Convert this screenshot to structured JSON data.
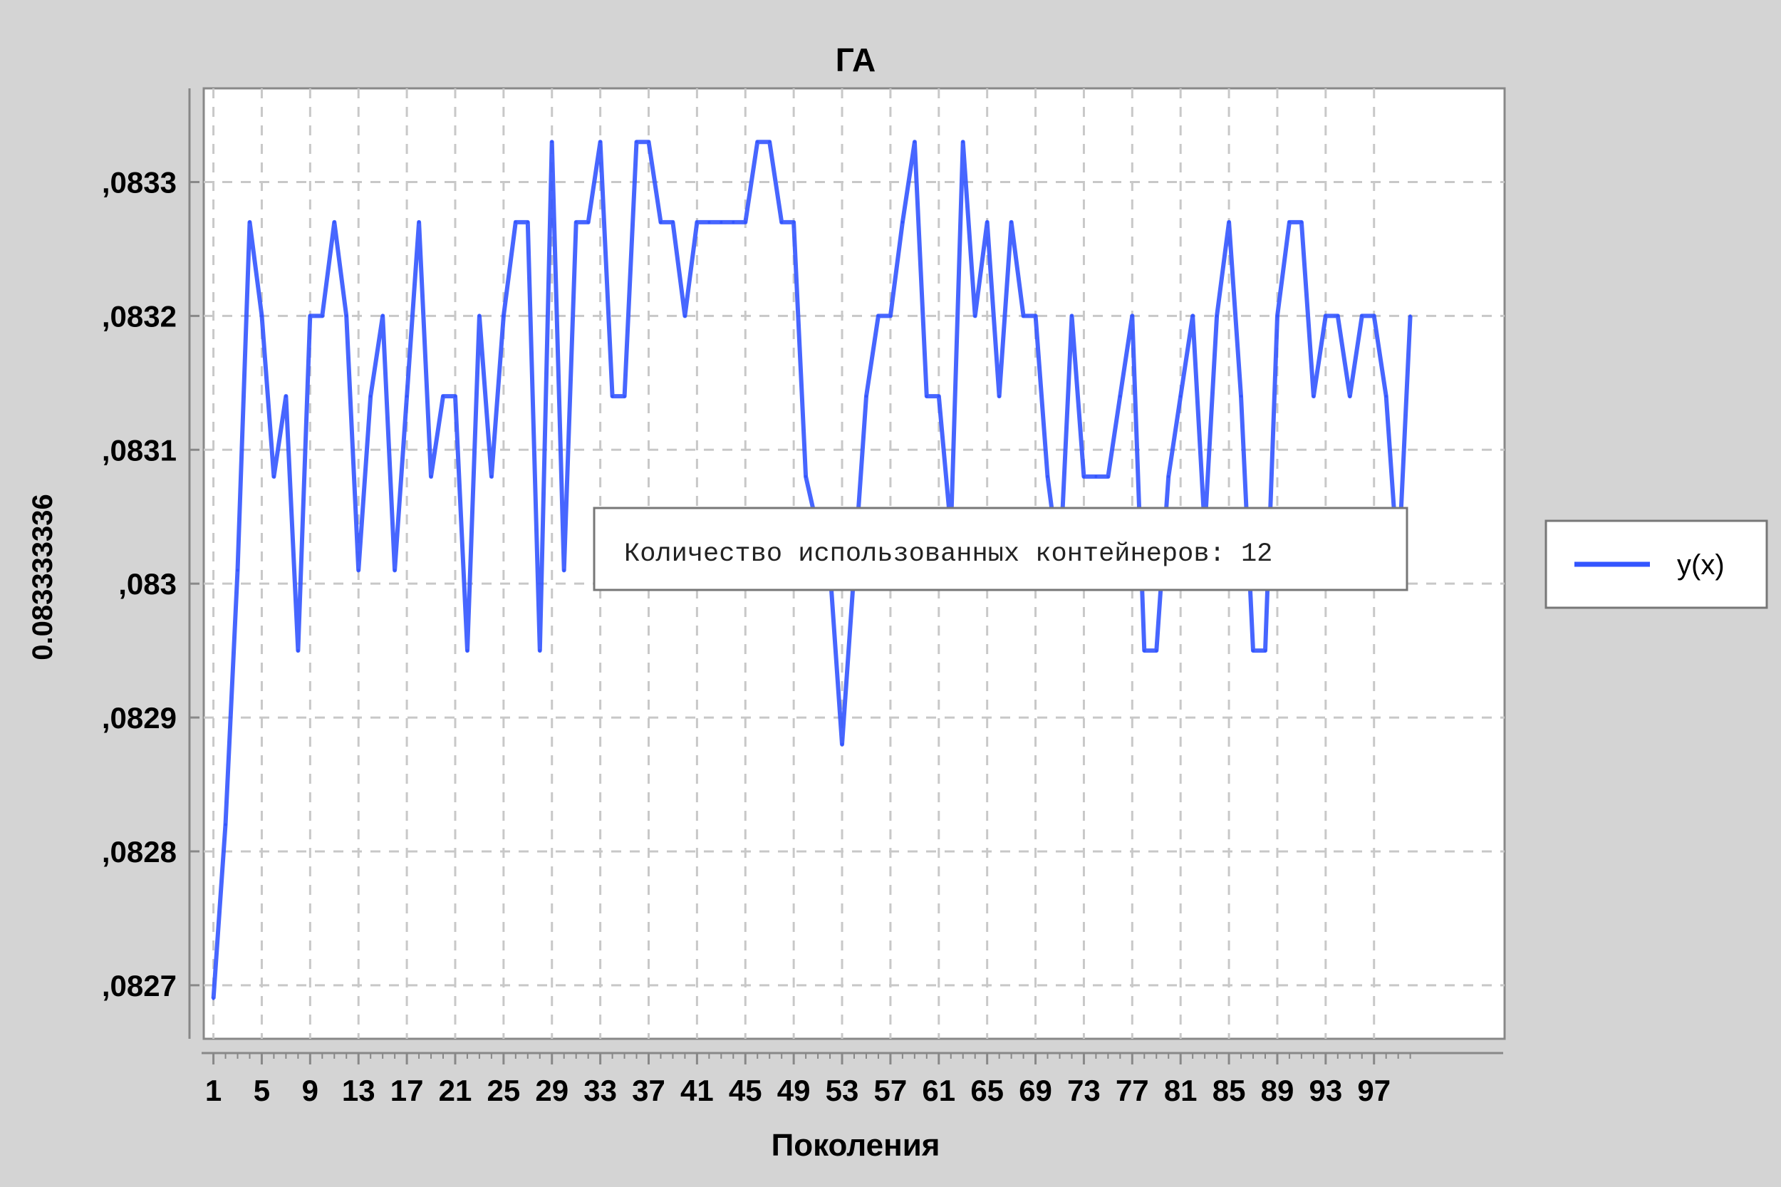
{
  "chart_data": {
    "type": "line",
    "title": "ГА",
    "xlabel": "Поколения",
    "ylabel": "0.083333336",
    "x_start": 1,
    "x_tick_labels": [
      "1",
      "5",
      "9",
      "13",
      "17",
      "21",
      "25",
      "29",
      "33",
      "37",
      "41",
      "45",
      "49",
      "53",
      "57",
      "61",
      "65",
      "69",
      "73",
      "77",
      "81",
      "85",
      "89",
      "93",
      "97"
    ],
    "y_ticks": [
      0.0827,
      0.0828,
      0.0829,
      0.083,
      0.0831,
      0.0832,
      0.0833
    ],
    "y_tick_labels": [
      ",0827",
      ",0828",
      ",0829",
      ",083",
      ",0831",
      ",0832",
      ",0833"
    ],
    "ylim": [
      0.08266,
      0.08337
    ],
    "xlim": [
      0.2,
      107.8
    ],
    "grid": true,
    "legend_position": "right",
    "series": [
      {
        "name": "y(x)",
        "color": "#3355ff",
        "values": [
          0.08269,
          0.08282,
          0.08301,
          0.08327,
          0.0832,
          0.08308,
          0.08314,
          0.08295,
          0.0832,
          0.0832,
          0.08327,
          0.0832,
          0.08301,
          0.08314,
          0.0832,
          0.08301,
          0.08314,
          0.08327,
          0.08308,
          0.08314,
          0.08314,
          0.08295,
          0.0832,
          0.08308,
          0.0832,
          0.08327,
          0.08327,
          0.08295,
          0.08333,
          0.08301,
          0.08327,
          0.08327,
          0.08333,
          0.08314,
          0.08314,
          0.08333,
          0.08333,
          0.08327,
          0.08327,
          0.0832,
          0.08327,
          0.08327,
          0.08327,
          0.08327,
          0.08327,
          0.08333,
          0.08333,
          0.08327,
          0.08327,
          0.08308,
          0.08304,
          0.08301,
          0.08288,
          0.08301,
          0.08314,
          0.0832,
          0.0832,
          0.08327,
          0.08333,
          0.08314,
          0.08314,
          0.08304,
          0.08333,
          0.0832,
          0.08327,
          0.08314,
          0.08327,
          0.0832,
          0.0832,
          0.08308,
          0.08301,
          0.0832,
          0.08308,
          0.08308,
          0.08308,
          0.08314,
          0.0832,
          0.08295,
          0.08295,
          0.08308,
          0.08314,
          0.0832,
          0.08304,
          0.0832,
          0.08327,
          0.08314,
          0.08295,
          0.08295,
          0.0832,
          0.08327,
          0.08327,
          0.08314,
          0.0832,
          0.0832,
          0.08314,
          0.0832,
          0.0832,
          0.08314,
          0.08301,
          0.0832
        ]
      }
    ]
  },
  "tooltip": {
    "text": "Количество использованных контейнеров: 12"
  }
}
